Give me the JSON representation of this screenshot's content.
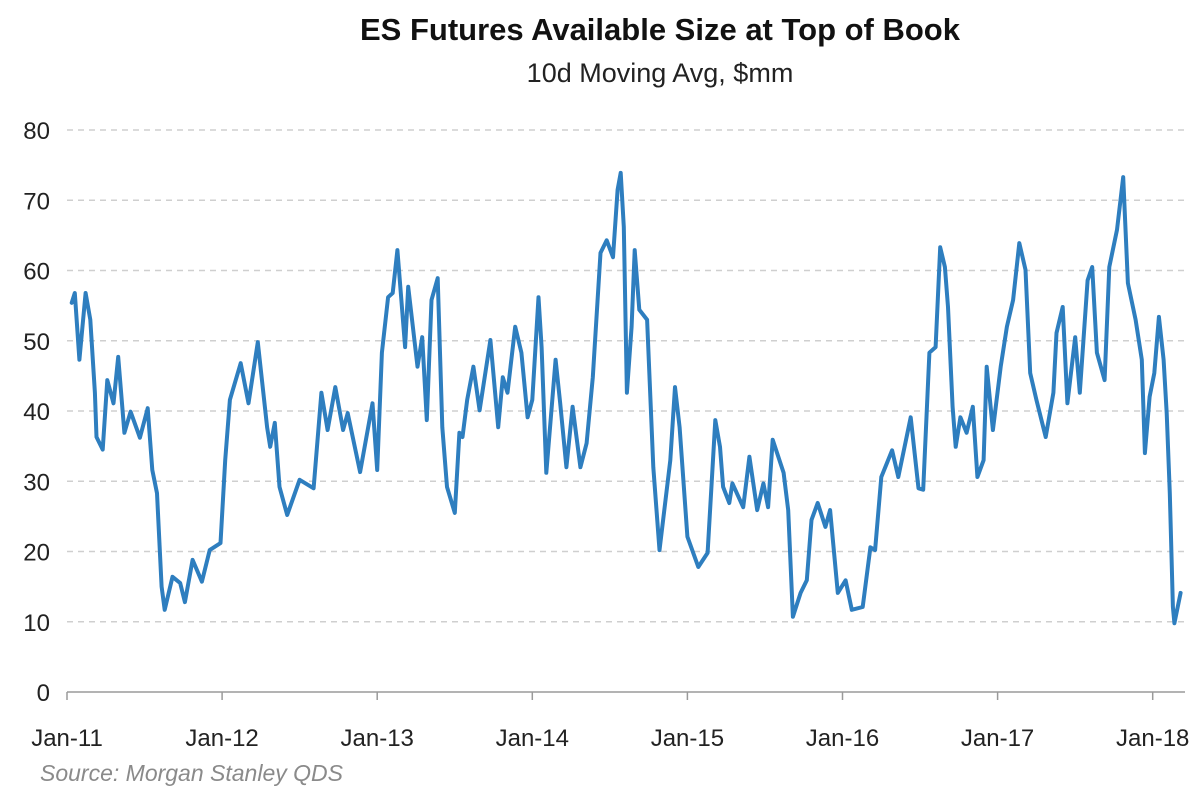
{
  "chart_data": {
    "type": "line",
    "title": "ES Futures Available Size at Top of Book",
    "subtitle": "10d Moving Avg, $mm",
    "source": "Source: Morgan Stanley QDS",
    "xlabel": "",
    "ylabel": "",
    "ylim": [
      0,
      80
    ],
    "xlim": [
      2011.0,
      2018.2
    ],
    "grid": true,
    "y_ticks": [
      "0",
      "10",
      "20",
      "30",
      "40",
      "50",
      "60",
      "70",
      "80"
    ],
    "x_ticks": [
      {
        "label": "Jan-11",
        "x": 2011
      },
      {
        "label": "Jan-12",
        "x": 2012
      },
      {
        "label": "Jan-13",
        "x": 2013
      },
      {
        "label": "Jan-14",
        "x": 2014
      },
      {
        "label": "Jan-15",
        "x": 2015
      },
      {
        "label": "Jan-16",
        "x": 2016
      },
      {
        "label": "Jan-17",
        "x": 2017
      },
      {
        "label": "Jan-18",
        "x": 2018
      }
    ],
    "line_color": "#2e7ebf",
    "series": [
      {
        "name": "ES Futures Available Size (10d MA, $mm)",
        "points": [
          [
            2011.03,
            55.4
          ],
          [
            2011.05,
            56.8
          ],
          [
            2011.08,
            47.3
          ],
          [
            2011.12,
            56.8
          ],
          [
            2011.15,
            53
          ],
          [
            2011.18,
            42.6
          ],
          [
            2011.19,
            36.3
          ],
          [
            2011.23,
            34.5
          ],
          [
            2011.26,
            44.4
          ],
          [
            2011.3,
            41.1
          ],
          [
            2011.33,
            47.7
          ],
          [
            2011.37,
            36.9
          ],
          [
            2011.41,
            39.9
          ],
          [
            2011.47,
            36.2
          ],
          [
            2011.52,
            40.4
          ],
          [
            2011.55,
            31.6
          ],
          [
            2011.58,
            28.3
          ],
          [
            2011.61,
            15
          ],
          [
            2011.63,
            11.7
          ],
          [
            2011.68,
            16.4
          ],
          [
            2011.73,
            15.5
          ],
          [
            2011.76,
            12.8
          ],
          [
            2011.81,
            18.8
          ],
          [
            2011.87,
            15.7
          ],
          [
            2011.92,
            20.2
          ],
          [
            2011.99,
            21.2
          ],
          [
            2012.02,
            33
          ],
          [
            2012.05,
            41.6
          ],
          [
            2012.12,
            46.8
          ],
          [
            2012.17,
            41.1
          ],
          [
            2012.23,
            49.8
          ],
          [
            2012.29,
            37.7
          ],
          [
            2012.31,
            34.9
          ],
          [
            2012.34,
            38.3
          ],
          [
            2012.37,
            29.2
          ],
          [
            2012.42,
            25.2
          ],
          [
            2012.5,
            30.2
          ],
          [
            2012.59,
            29
          ],
          [
            2012.64,
            42.6
          ],
          [
            2012.68,
            37.3
          ],
          [
            2012.73,
            43.4
          ],
          [
            2012.78,
            37.3
          ],
          [
            2012.81,
            39.7
          ],
          [
            2012.89,
            31.3
          ],
          [
            2012.97,
            41.1
          ],
          [
            2013.0,
            31.6
          ],
          [
            2013.03,
            48.3
          ],
          [
            2013.07,
            56.2
          ],
          [
            2013.1,
            56.8
          ],
          [
            2013.13,
            62.9
          ],
          [
            2013.18,
            49.1
          ],
          [
            2013.2,
            57.7
          ],
          [
            2013.26,
            46.3
          ],
          [
            2013.29,
            50.5
          ],
          [
            2013.32,
            38.7
          ],
          [
            2013.35,
            55.8
          ],
          [
            2013.39,
            58.9
          ],
          [
            2013.42,
            37.7
          ],
          [
            2013.45,
            29.2
          ],
          [
            2013.5,
            25.5
          ],
          [
            2013.53,
            36.9
          ],
          [
            2013.55,
            36.3
          ],
          [
            2013.58,
            41.6
          ],
          [
            2013.62,
            46.3
          ],
          [
            2013.66,
            40.1
          ],
          [
            2013.73,
            50.1
          ],
          [
            2013.78,
            37.7
          ],
          [
            2013.81,
            44.8
          ],
          [
            2013.84,
            42.6
          ],
          [
            2013.89,
            52
          ],
          [
            2013.93,
            48.3
          ],
          [
            2013.97,
            39.1
          ],
          [
            2014.0,
            41.6
          ],
          [
            2014.04,
            56.2
          ],
          [
            2014.06,
            49.1
          ],
          [
            2014.09,
            31.2
          ],
          [
            2014.15,
            47.3
          ],
          [
            2014.18,
            41.1
          ],
          [
            2014.22,
            32
          ],
          [
            2014.26,
            40.6
          ],
          [
            2014.31,
            32
          ],
          [
            2014.35,
            35.4
          ],
          [
            2014.39,
            44.8
          ],
          [
            2014.44,
            62.5
          ],
          [
            2014.48,
            64.3
          ],
          [
            2014.52,
            61.9
          ],
          [
            2014.55,
            71.5
          ],
          [
            2014.57,
            73.9
          ],
          [
            2014.59,
            66.2
          ],
          [
            2014.61,
            42.6
          ],
          [
            2014.64,
            52
          ],
          [
            2014.66,
            62.9
          ],
          [
            2014.69,
            54.4
          ],
          [
            2014.74,
            53
          ],
          [
            2014.78,
            32
          ],
          [
            2014.82,
            20.2
          ],
          [
            2014.89,
            33
          ],
          [
            2014.92,
            43.4
          ],
          [
            2014.95,
            37.7
          ],
          [
            2015.0,
            22.1
          ],
          [
            2015.07,
            17.8
          ],
          [
            2015.13,
            19.8
          ],
          [
            2015.18,
            38.7
          ],
          [
            2015.21,
            34.9
          ],
          [
            2015.23,
            29.2
          ],
          [
            2015.27,
            26.9
          ],
          [
            2015.29,
            29.7
          ],
          [
            2015.36,
            26.3
          ],
          [
            2015.4,
            33.5
          ],
          [
            2015.45,
            25.9
          ],
          [
            2015.49,
            29.7
          ],
          [
            2015.52,
            26.3
          ],
          [
            2015.55,
            35.9
          ],
          [
            2015.62,
            31.2
          ],
          [
            2015.65,
            25.9
          ],
          [
            2015.68,
            10.7
          ],
          [
            2015.73,
            14.1
          ],
          [
            2015.77,
            15.9
          ],
          [
            2015.8,
            24.5
          ],
          [
            2015.84,
            26.9
          ],
          [
            2015.89,
            23.5
          ],
          [
            2015.92,
            25.9
          ],
          [
            2015.97,
            14.1
          ],
          [
            2016.02,
            15.9
          ],
          [
            2016.06,
            11.7
          ],
          [
            2016.13,
            12.1
          ],
          [
            2016.18,
            20.6
          ],
          [
            2016.21,
            20.2
          ],
          [
            2016.25,
            30.6
          ],
          [
            2016.32,
            34.4
          ],
          [
            2016.36,
            30.6
          ],
          [
            2016.44,
            39.1
          ],
          [
            2016.49,
            29
          ],
          [
            2016.52,
            28.8
          ],
          [
            2016.56,
            48.3
          ],
          [
            2016.6,
            49.1
          ],
          [
            2016.63,
            63.3
          ],
          [
            2016.66,
            60.5
          ],
          [
            2016.68,
            54.8
          ],
          [
            2016.71,
            40.6
          ],
          [
            2016.73,
            34.9
          ],
          [
            2016.76,
            39.1
          ],
          [
            2016.8,
            36.9
          ],
          [
            2016.84,
            40.6
          ],
          [
            2016.87,
            30.6
          ],
          [
            2016.91,
            33
          ],
          [
            2016.93,
            46.3
          ],
          [
            2016.97,
            37.3
          ],
          [
            2017.02,
            46.3
          ],
          [
            2017.06,
            52
          ],
          [
            2017.1,
            55.8
          ],
          [
            2017.14,
            63.9
          ],
          [
            2017.18,
            60.1
          ],
          [
            2017.21,
            45.4
          ],
          [
            2017.25,
            41.6
          ],
          [
            2017.31,
            36.3
          ],
          [
            2017.36,
            42.6
          ],
          [
            2017.38,
            51.1
          ],
          [
            2017.42,
            54.8
          ],
          [
            2017.45,
            41.1
          ],
          [
            2017.5,
            50.5
          ],
          [
            2017.53,
            42.6
          ],
          [
            2017.58,
            58.6
          ],
          [
            2017.61,
            60.5
          ],
          [
            2017.64,
            48.3
          ],
          [
            2017.69,
            44.4
          ],
          [
            2017.72,
            60.5
          ],
          [
            2017.77,
            65.8
          ],
          [
            2017.81,
            73.3
          ],
          [
            2017.84,
            58.2
          ],
          [
            2017.89,
            53
          ],
          [
            2017.93,
            47.3
          ],
          [
            2017.95,
            34
          ],
          [
            2017.98,
            42
          ],
          [
            2018.01,
            45.4
          ],
          [
            2018.04,
            53.4
          ],
          [
            2018.07,
            47.3
          ],
          [
            2018.09,
            39.7
          ],
          [
            2018.11,
            28.3
          ],
          [
            2018.13,
            12.1
          ],
          [
            2018.14,
            9.8
          ],
          [
            2018.18,
            14.1
          ]
        ]
      }
    ]
  }
}
